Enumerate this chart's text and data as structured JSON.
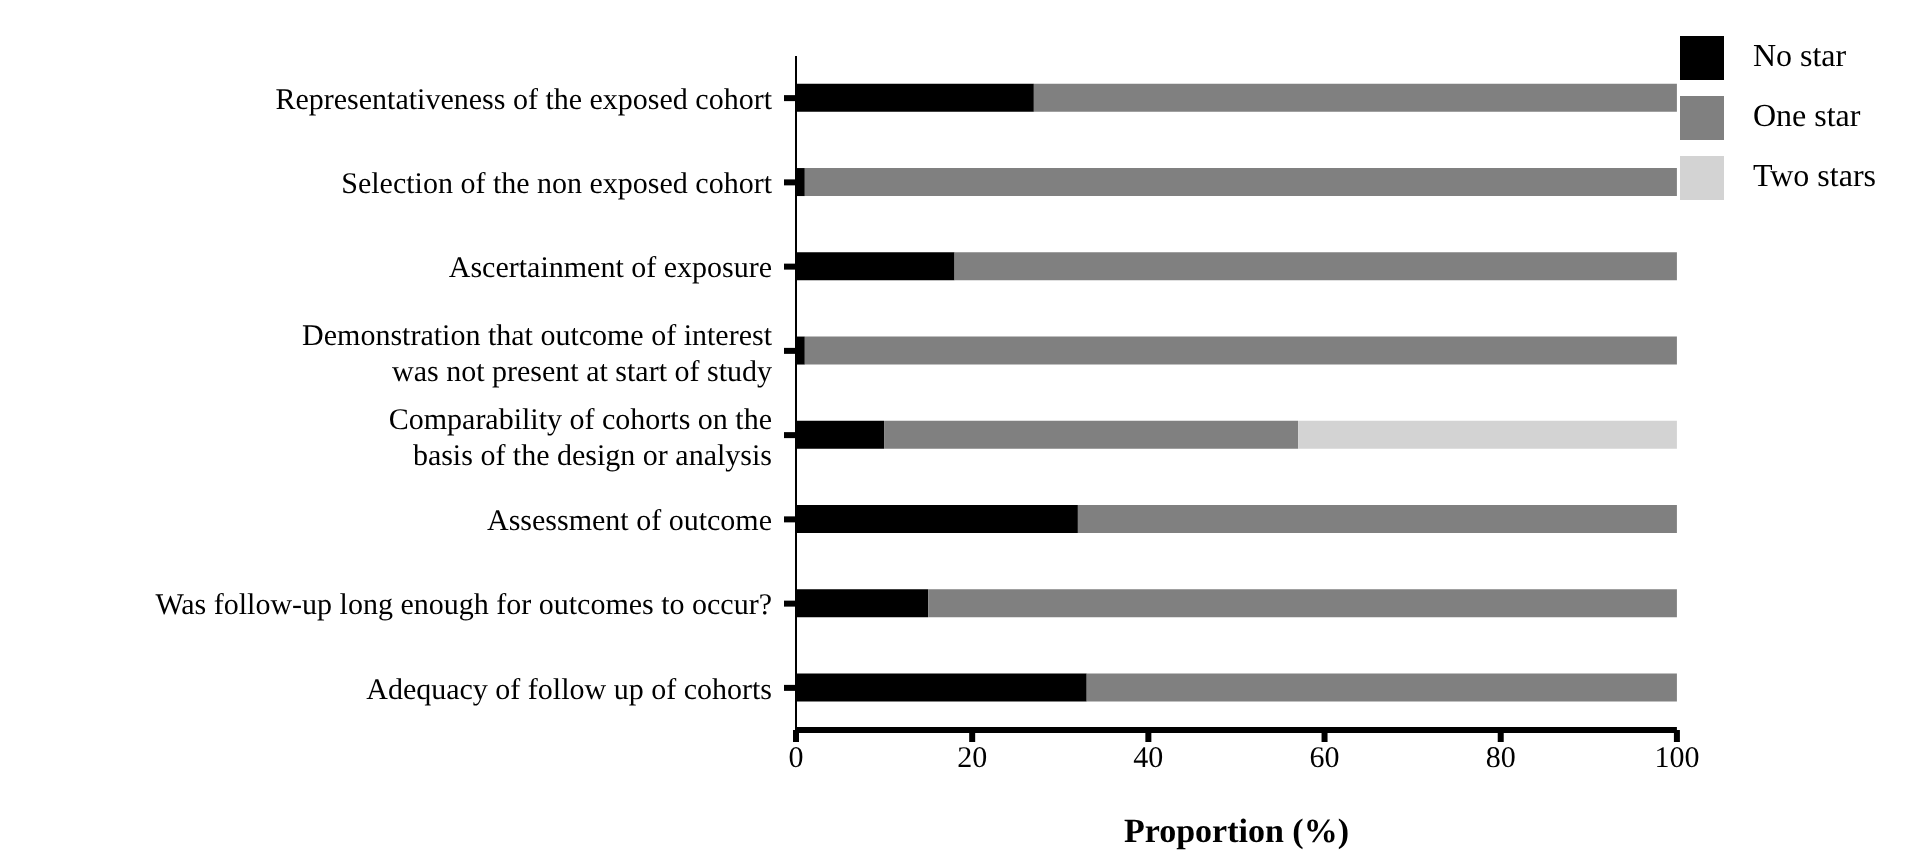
{
  "chart_data": {
    "type": "bar",
    "orientation": "horizontal",
    "stacked": true,
    "xlabel": "Proportion (%)",
    "categories": [
      "Representativeness of the exposed cohort",
      "Selection of the non exposed cohort",
      "Ascertainment of exposure",
      "Demonstration that outcome of interest was not present at start of study",
      "Comparability of cohorts on the basis of the design or analysis",
      "Assessment of outcome",
      "Was follow-up long enough for outcomes to occur?",
      "Adequacy of follow up of cohorts"
    ],
    "series": [
      {
        "name": "No star",
        "color": "#000000",
        "values": [
          27,
          1,
          18,
          1,
          10,
          32,
          15,
          33
        ]
      },
      {
        "name": "One star",
        "color": "#808080",
        "values": [
          73,
          99,
          82,
          99,
          47,
          68,
          85,
          67
        ]
      },
      {
        "name": "Two stars",
        "color": "#d3d3d3",
        "values": [
          0,
          0,
          0,
          0,
          43,
          0,
          0,
          0
        ]
      }
    ],
    "xlim": [
      0,
      100
    ],
    "xticks": [
      0,
      20,
      40,
      60,
      80,
      100
    ],
    "grid": false,
    "legend": "top right"
  }
}
